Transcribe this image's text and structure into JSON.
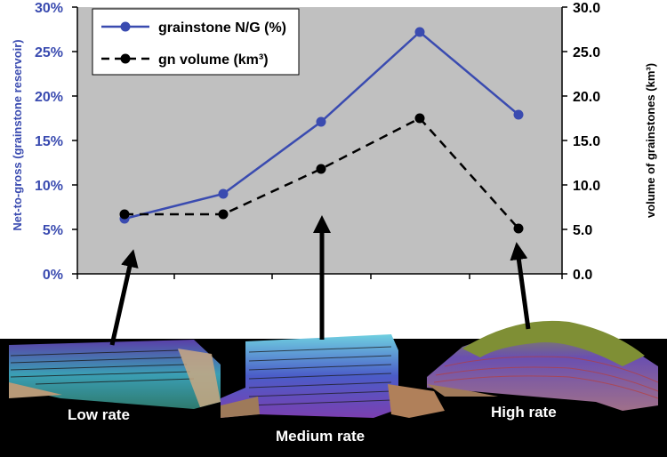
{
  "chart_data": {
    "type": "line",
    "categories": [
      "Low rate",
      "",
      "Medium rate",
      "",
      "High rate"
    ],
    "series": [
      {
        "name": "grainstone N/G (%)",
        "axis": "left",
        "color": "#3a4bb0",
        "dash": "solid",
        "marker_color": "#3a4bb0",
        "values": [
          6.2,
          9.0,
          17.1,
          27.2,
          17.9
        ]
      },
      {
        "name": "gn volume (km³)",
        "axis": "right",
        "color": "#000000",
        "dash": "dashed",
        "marker_color": "#000000",
        "values": [
          6.7,
          6.7,
          11.8,
          17.5,
          5.1
        ]
      }
    ],
    "yleft": {
      "label": "Net-to-gross (grainstone reservoir)",
      "ylim": [
        0,
        30
      ],
      "ticks": [
        0,
        5,
        10,
        15,
        20,
        25,
        30
      ],
      "tick_labels": [
        "0%",
        "5%",
        "10%",
        "15%",
        "20%",
        "25%",
        "30%"
      ],
      "color": "#3a4bb0"
    },
    "yright": {
      "label": "volume of grainstones (km³)",
      "ylim": [
        0,
        30
      ],
      "ticks": [
        0,
        5,
        10,
        15,
        20,
        25,
        30
      ],
      "tick_labels": [
        "0.0",
        "5.0",
        "10.0",
        "15.0",
        "20.0",
        "25.0",
        "30.0"
      ],
      "color": "#000000"
    },
    "grid": false,
    "plot_background": "#c0c0c0",
    "legend": {
      "placement": "top-left",
      "entries": [
        "grainstone N/G (%)",
        "gn volume (km³)"
      ]
    },
    "model_labels": [
      "Low rate",
      "Medium rate",
      "High rate"
    ]
  }
}
